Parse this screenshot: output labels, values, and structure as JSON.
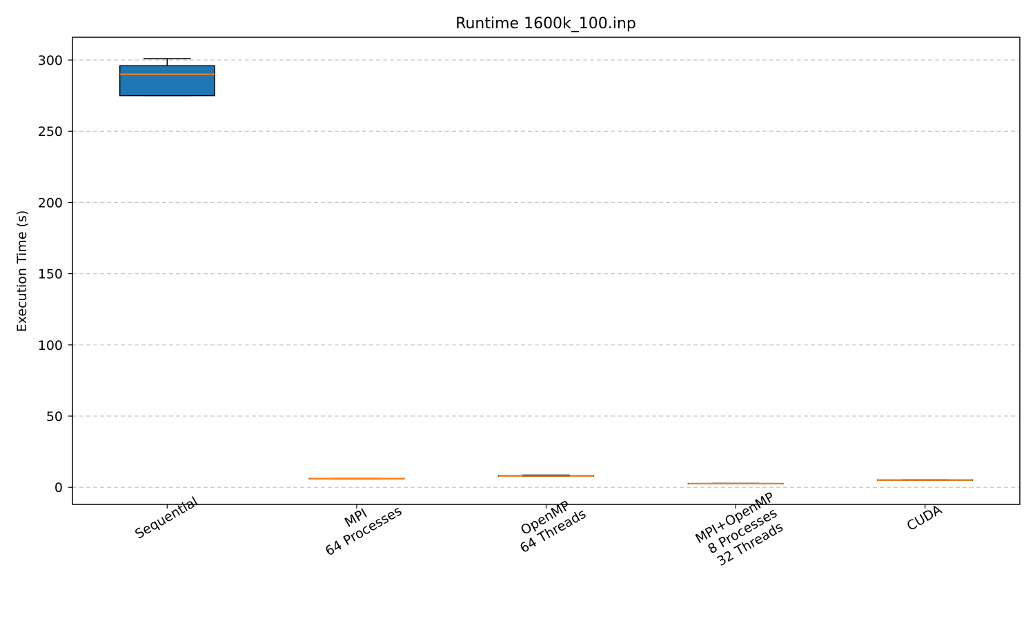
{
  "chart_data": {
    "type": "box",
    "title": "Runtime 1600k_100.inp",
    "ylabel": "Execution Time (s)",
    "xlabel": "",
    "ylim": [
      -12,
      316
    ],
    "yticks": [
      0,
      50,
      100,
      150,
      200,
      250,
      300
    ],
    "grid": "y-dashed",
    "box_color": "#1f77b4",
    "median_color": "#ff7f0e",
    "categories": [
      [
        "Sequential"
      ],
      [
        "MPI",
        "64 Processes"
      ],
      [
        "OpenMP",
        "64 Threads"
      ],
      [
        "MPI+OpenMP",
        "8 Processes",
        "32 Threads"
      ],
      [
        "CUDA"
      ]
    ],
    "boxes": [
      {
        "whisker_low": 275,
        "q1": 275,
        "median": 290,
        "q3": 296,
        "whisker_high": 301
      },
      {
        "whisker_low": 6.0,
        "q1": 6.0,
        "median": 6.1,
        "q3": 6.2,
        "whisker_high": 6.3
      },
      {
        "whisker_low": 7.8,
        "q1": 7.9,
        "median": 8.0,
        "q3": 8.2,
        "whisker_high": 8.6
      },
      {
        "whisker_low": 2.4,
        "q1": 2.5,
        "median": 2.6,
        "q3": 2.7,
        "whisker_high": 2.8
      },
      {
        "whisker_low": 5.0,
        "q1": 5.0,
        "median": 5.1,
        "q3": 5.2,
        "whisker_high": 5.3
      }
    ]
  }
}
